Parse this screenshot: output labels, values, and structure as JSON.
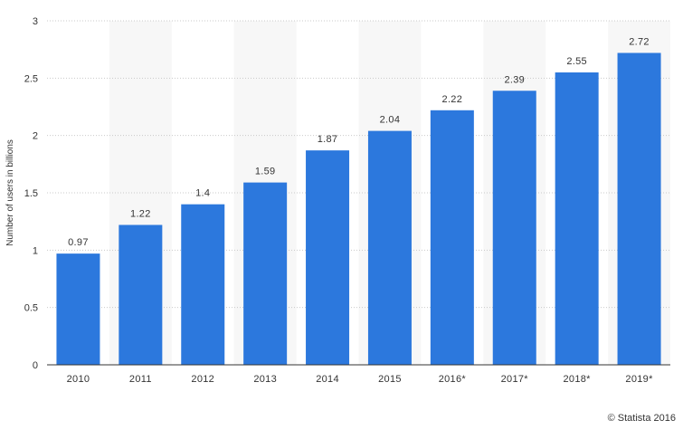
{
  "chart_data": {
    "type": "bar",
    "title": "",
    "xlabel": "",
    "ylabel": "Number of users in billions",
    "categories": [
      "2010",
      "2011",
      "2012",
      "2013",
      "2014",
      "2015",
      "2016*",
      "2017*",
      "2018*",
      "2019*"
    ],
    "values": [
      0.97,
      1.22,
      1.4,
      1.59,
      1.87,
      2.04,
      2.22,
      2.39,
      2.55,
      2.72
    ],
    "value_labels": [
      "0.97",
      "1.22",
      "1.4",
      "1.59",
      "1.87",
      "2.04",
      "2.22",
      "2.39",
      "2.55",
      "2.72"
    ],
    "ylim": [
      0,
      3
    ],
    "yticks": [
      0,
      0.5,
      1,
      1.5,
      2,
      2.5,
      3
    ],
    "ytick_labels": [
      "0",
      "0.5",
      "1",
      "1.5",
      "2",
      "2.5",
      "3"
    ],
    "grid": true,
    "legend": "none",
    "colors": {
      "bar": "#2c78dd",
      "band": "#f7f7f7",
      "grid": "#c9c9c9",
      "axis": "#333333",
      "text": "#333333"
    }
  },
  "credit": "© Statista 2016"
}
